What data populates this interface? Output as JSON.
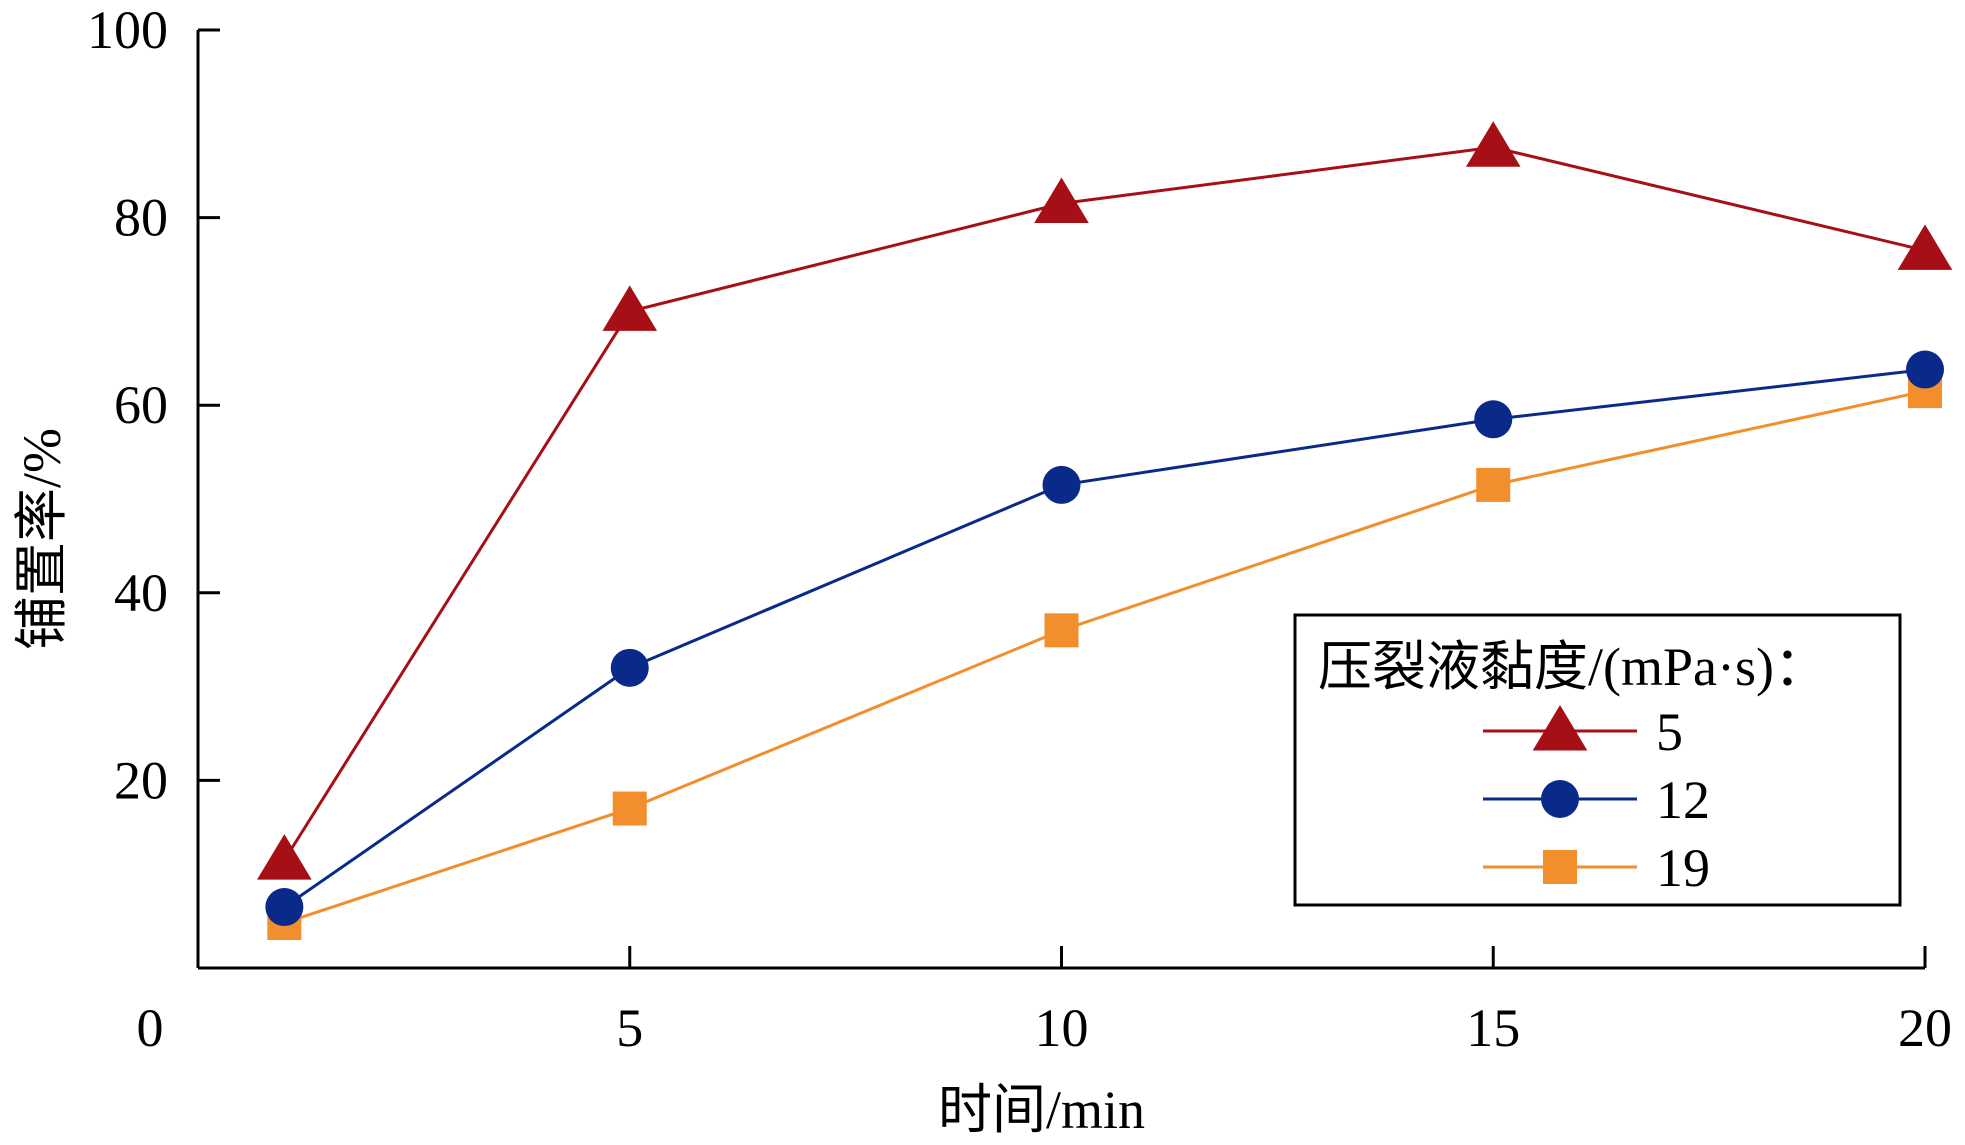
{
  "chart_data": {
    "type": "line",
    "title": "",
    "xlabel": "时间/min",
    "ylabel": "铺置率/%",
    "xlim": [
      0,
      20
    ],
    "ylim": [
      0,
      100
    ],
    "x_ticks": [
      5,
      10,
      15,
      20
    ],
    "y_ticks": [
      20,
      40,
      60,
      80,
      100
    ],
    "origin_label": "0",
    "grid": false,
    "legend": {
      "title": "压裂液黏度/(mPa·s)：",
      "placement": "lower-right"
    },
    "x": [
      1,
      5,
      10,
      15,
      20
    ],
    "series": [
      {
        "name": "5",
        "marker": "triangle",
        "color": "#a50f15",
        "values": [
          11.5,
          70,
          81.5,
          87.5,
          76.5
        ]
      },
      {
        "name": "12",
        "marker": "circle",
        "color": "#0a2a8a",
        "values": [
          6.5,
          32,
          51.5,
          58.5,
          63.8
        ]
      },
      {
        "name": "19",
        "marker": "square",
        "color": "#f28e2b",
        "values": [
          4.8,
          17,
          36,
          51.5,
          61.5
        ]
      }
    ]
  }
}
